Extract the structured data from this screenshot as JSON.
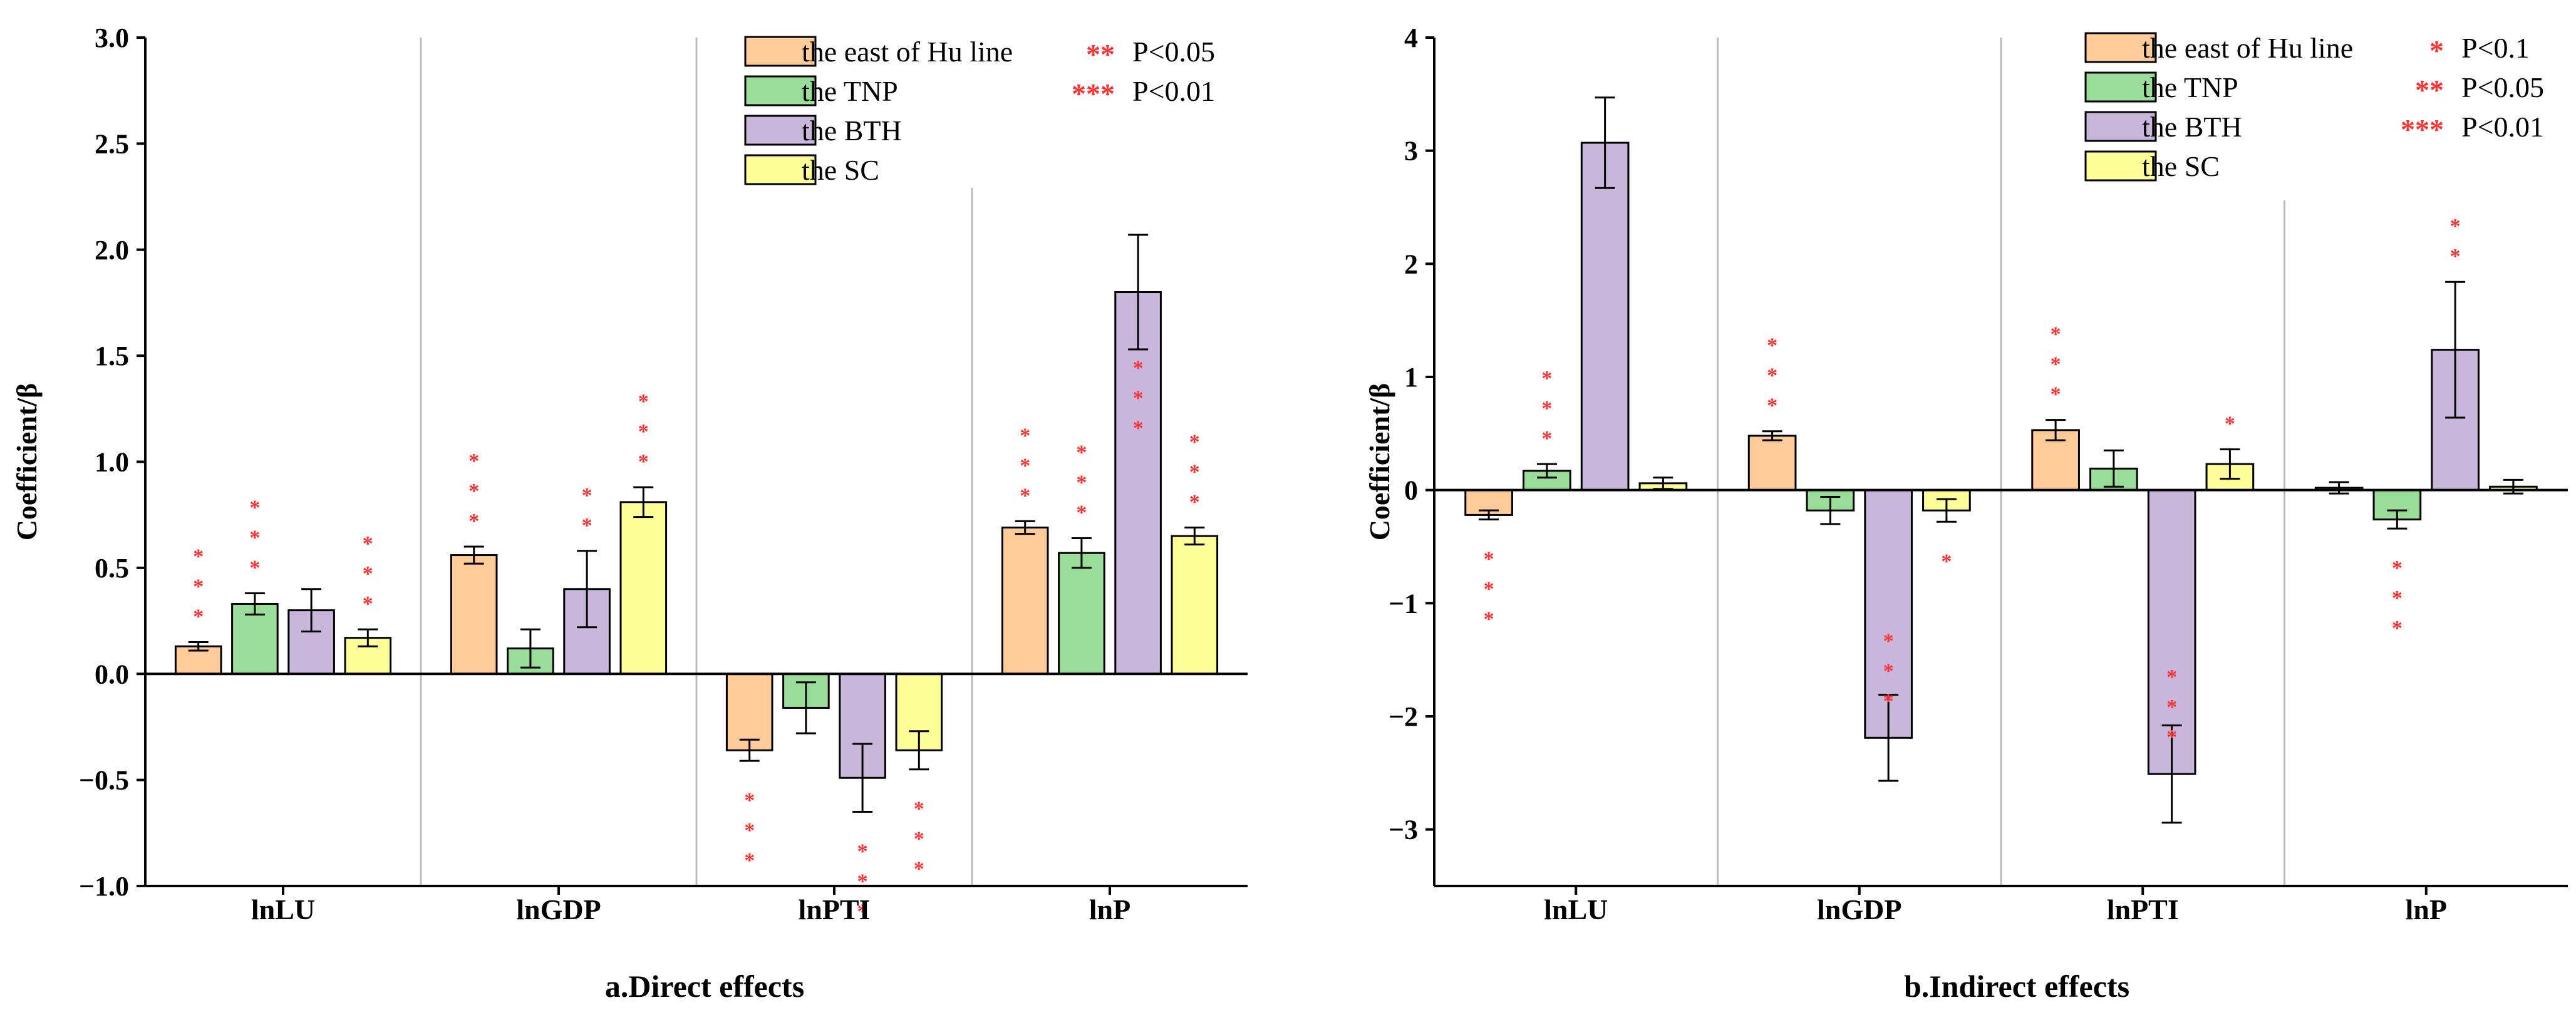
{
  "colors": {
    "east": "#FFCC99",
    "tnp": "#99DD99",
    "bth": "#C9B6DB",
    "sc": "#FFFF99",
    "star": "#FF3333",
    "divider": "#BBBBBB",
    "axis": "#000000"
  },
  "chart_data": [
    {
      "type": "bar",
      "title": "a.Direct effects",
      "xlabel": "",
      "ylabel": "Coefficient/β",
      "ylim": [
        -1.0,
        3.0
      ],
      "yticks": [
        "−1.0",
        "−0.5",
        "0.0",
        "0.5",
        "1.0",
        "1.5",
        "2.0",
        "2.5",
        "3.0"
      ],
      "ytick_values": [
        -1.0,
        -0.5,
        0.0,
        0.5,
        1.0,
        1.5,
        2.0,
        2.5,
        3.0
      ],
      "categories": [
        "lnLU",
        "lnGDP",
        "lnPTI",
        "lnP"
      ],
      "series": [
        {
          "name": "the east of Hu line",
          "color_key": "east",
          "values": [
            0.13,
            0.56,
            -0.36,
            0.69
          ],
          "errors": [
            0.02,
            0.04,
            0.05,
            0.03
          ],
          "stars": [
            "***",
            "***",
            "***",
            "***"
          ]
        },
        {
          "name": "the TNP",
          "color_key": "tnp",
          "values": [
            0.33,
            0.12,
            -0.16,
            0.57
          ],
          "errors": [
            0.05,
            0.09,
            0.12,
            0.07
          ],
          "stars": [
            "***",
            "",
            "",
            "***"
          ]
        },
        {
          "name": "the BTH",
          "color_key": "bth",
          "values": [
            0.3,
            0.4,
            -0.49,
            1.8
          ],
          "errors": [
            0.1,
            0.18,
            0.16,
            0.27
          ],
          "stars": [
            "",
            "**",
            "***",
            "***"
          ]
        },
        {
          "name": "the SC",
          "color_key": "sc",
          "values": [
            0.17,
            0.81,
            -0.36,
            0.65
          ],
          "errors": [
            0.04,
            0.07,
            0.09,
            0.04
          ],
          "stars": [
            "***",
            "***",
            "***",
            "***"
          ]
        }
      ],
      "legend": {
        "entries": [
          "the east of Hu line",
          "the TNP",
          "the BTH",
          "the SC"
        ],
        "significance": [
          {
            "stars": "**",
            "label": "P<0.05"
          },
          {
            "stars": "***",
            "label": "P<0.01"
          }
        ]
      }
    },
    {
      "type": "bar",
      "title": "b.Indirect effects",
      "xlabel": "",
      "ylabel": "Coefficient/β",
      "ylim": [
        -3.5,
        4.0
      ],
      "yticks": [
        "−3",
        "−2",
        "−1",
        "0",
        "1",
        "2",
        "3",
        "4"
      ],
      "ytick_values": [
        -3,
        -2,
        -1,
        0,
        1,
        2,
        3,
        4
      ],
      "categories": [
        "lnLU",
        "lnGDP",
        "lnPTI",
        "lnP"
      ],
      "series": [
        {
          "name": "the east of Hu line",
          "color_key": "east",
          "values": [
            -0.22,
            0.48,
            0.53,
            0.02
          ],
          "errors": [
            0.04,
            0.04,
            0.09,
            0.05
          ],
          "stars": [
            "***",
            "***",
            "***",
            ""
          ]
        },
        {
          "name": "the TNP",
          "color_key": "tnp",
          "values": [
            0.17,
            -0.18,
            0.19,
            -0.26
          ],
          "errors": [
            0.06,
            0.12,
            0.16,
            0.08
          ],
          "stars": [
            "***",
            "",
            "",
            "***"
          ]
        },
        {
          "name": "the BTH",
          "color_key": "bth",
          "values": [
            3.07,
            -2.19,
            -2.51,
            1.24
          ],
          "errors": [
            0.4,
            0.38,
            0.43,
            0.6
          ],
          "stars": [
            "",
            "***",
            "***",
            "**"
          ]
        },
        {
          "name": "the SC",
          "color_key": "sc",
          "values": [
            0.06,
            -0.18,
            0.23,
            0.03
          ],
          "errors": [
            0.05,
            0.1,
            0.13,
            0.06
          ],
          "stars": [
            "",
            "*",
            "*",
            ""
          ]
        }
      ],
      "legend": {
        "entries": [
          "the east of Hu line",
          "the TNP",
          "the BTH",
          "the SC"
        ],
        "significance": [
          {
            "stars": "*",
            "label": "P<0.1"
          },
          {
            "stars": "**",
            "label": "P<0.05"
          },
          {
            "stars": "***",
            "label": "P<0.01"
          }
        ]
      }
    }
  ]
}
